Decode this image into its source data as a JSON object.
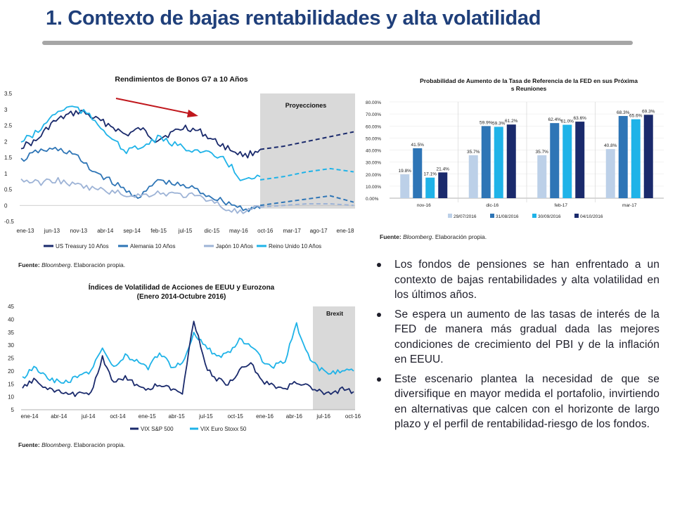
{
  "slide": {
    "title": "1. Contexto de bajas rentabilidades y alta volatilidad"
  },
  "sources": {
    "bold": "Fuente: ",
    "italic": "Bloomberg",
    "rest": ". Elaboración propia."
  },
  "bullets": [
    "Los fondos de pensiones se han enfrentado a un contexto de bajas rentabilidades y alta volatilidad en los últimos años.",
    "Se espera un aumento de las tasas de interés de la FED de manera más gradual dada las mejores condiciones de crecimiento del PBI y de la inflación en EEUU.",
    "Este escenario  plantea la necesidad de que se diversifique en mayor medida el portafolio, invirtiendo en alternativas que calcen con el horizonte de largo plazo y el perfil de rentabilidad-riesgo de los fondos."
  ],
  "chart_data": [
    {
      "type": "line",
      "title": "Rendimientos de Bonos G7 a 10 Años",
      "annotation": "Proyecciones",
      "x_ticks": [
        "ene-13",
        "jun-13",
        "nov-13",
        "abr-14",
        "sep-14",
        "feb-15",
        "jul-15",
        "dic-15",
        "may-16",
        "oct-16",
        "mar-17",
        "ago-17",
        "ene-18"
      ],
      "y_ticks": [
        "3.5",
        "3",
        "2.5",
        "2",
        "1.5",
        "1",
        "0.5",
        "0",
        "-0.5"
      ],
      "ylim": [
        -0.5,
        3.5
      ],
      "grid": false,
      "legend_position": "bottom",
      "projection_start": "oct-16",
      "series": [
        {
          "name": "US Treasury 10 Años",
          "color": "#1a2a6c",
          "values": [
            1.85,
            2.0,
            2.55,
            2.8,
            2.95,
            2.7,
            2.5,
            2.2,
            2.4,
            2.05,
            2.25,
            2.45,
            2.3,
            2.0,
            1.75,
            1.55,
            1.75
          ],
          "projection": [
            1.75,
            1.85,
            2.0,
            2.15,
            2.3
          ]
        },
        {
          "name": "Alemania 10 Años",
          "color": "#2e75b6",
          "values": [
            1.4,
            1.7,
            1.75,
            1.65,
            1.15,
            0.85,
            0.5,
            0.25,
            0.8,
            0.65,
            0.55,
            0.3,
            0.1,
            -0.1,
            -0.1
          ],
          "projection": [
            0.0,
            0.1,
            0.2,
            0.3,
            0.1
          ]
        },
        {
          "name": "Japón 10 Años",
          "color": "#9db3d6",
          "values": [
            0.8,
            0.7,
            0.8,
            0.65,
            0.55,
            0.45,
            0.35,
            0.3,
            0.4,
            0.35,
            0.3,
            0.2,
            -0.1,
            -0.25,
            -0.05
          ],
          "projection": [
            -0.05,
            0.0,
            0.05,
            0.05,
            0.0
          ]
        },
        {
          "name": "Reino Unido 10 Años",
          "color": "#1fb3e8",
          "values": [
            2.0,
            2.3,
            2.9,
            3.1,
            2.8,
            2.3,
            1.7,
            1.8,
            2.1,
            1.9,
            1.75,
            1.6,
            1.4,
            0.75,
            0.9
          ],
          "projection": [
            0.8,
            0.9,
            1.05,
            1.15,
            1.05
          ]
        }
      ]
    },
    {
      "type": "bar",
      "title": "Probabilidad de Aumento de la Tasa de Referencia de la FED en sus Próximas Reuniones",
      "categories": [
        "nov-16",
        "dic-16",
        "feb-17",
        "mar-17"
      ],
      "y_ticks": [
        "80.00%",
        "70.00%",
        "60.00%",
        "50.00%",
        "40.00%",
        "30.00%",
        "20.00%",
        "10.00%",
        "0.00%"
      ],
      "ylim": [
        0,
        80
      ],
      "legend_position": "bottom",
      "series": [
        {
          "name": "29/07/2016",
          "color": "#bcd0e8",
          "values": [
            19.8,
            35.7,
            35.7,
            40.8
          ],
          "labels": [
            "19.8%",
            "35.7%",
            "35.7%",
            "40.8%"
          ]
        },
        {
          "name": "31/08/2016",
          "color": "#2e75b6",
          "values": [
            41.5,
            59.9,
            62.4,
            68.3
          ],
          "labels": [
            "41.5%",
            "59.9%",
            "62.4%",
            "68.3%"
          ]
        },
        {
          "name": "30/09/2016",
          "color": "#1fb3e8",
          "values": [
            17.1,
            59.3,
            61.0,
            65.6
          ],
          "labels": [
            "17.1%",
            "59.3%",
            "61.0%",
            "65.6%"
          ]
        },
        {
          "name": "04/10/2016",
          "color": "#1a2a6c",
          "values": [
            21.4,
            61.2,
            63.6,
            69.3
          ],
          "labels": [
            "21.4%",
            "61.2%",
            "63.6%",
            "69.3%"
          ]
        }
      ]
    },
    {
      "type": "line",
      "title": "Índices de Volatilidad de Acciones de EEUU y Eurozona",
      "subtitle": "(Enero 2014-Octubre 2016)",
      "annotation": "Brexit",
      "x_ticks": [
        "ene-14",
        "abr-14",
        "jul-14",
        "oct-14",
        "ene-15",
        "abr-15",
        "jul-15",
        "oct-15",
        "ene-16",
        "abr-16",
        "jul-16",
        "oct-16"
      ],
      "y_ticks": [
        "45",
        "40",
        "35",
        "30",
        "25",
        "20",
        "15",
        "10",
        "5"
      ],
      "ylim": [
        5,
        45
      ],
      "grid": false,
      "legend_position": "bottom",
      "series": [
        {
          "name": "VIX S&P 500",
          "color": "#1a2a6c",
          "values": [
            13,
            17,
            13,
            12,
            11,
            11,
            12,
            25,
            15,
            18,
            14,
            13,
            15,
            13,
            12,
            40,
            22,
            17,
            15,
            20,
            23,
            16,
            14,
            13,
            16,
            14,
            12,
            11,
            13,
            12
          ]
        },
        {
          "name": "VIX Euro Stoxx 50",
          "color": "#1fb3e8",
          "values": [
            17,
            22,
            18,
            16,
            16,
            18,
            20,
            29,
            21,
            26,
            24,
            21,
            27,
            22,
            23,
            35,
            30,
            25,
            27,
            32,
            30,
            24,
            22,
            24,
            38,
            26,
            21,
            19,
            20,
            20
          ]
        }
      ]
    }
  ]
}
